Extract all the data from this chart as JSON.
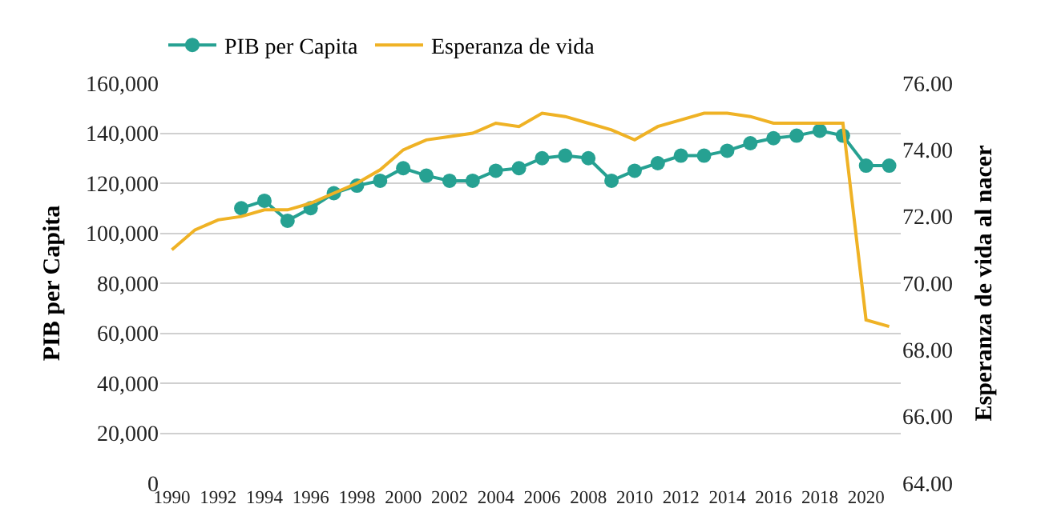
{
  "chart_data": {
    "type": "line",
    "categories": [
      "1990",
      null,
      "1992",
      null,
      "1994",
      null,
      "1996",
      null,
      "1998",
      null,
      "2000",
      null,
      "2002",
      null,
      "2004",
      null,
      "2006",
      null,
      "2008",
      null,
      "2010",
      null,
      "2012",
      null,
      "2014",
      null,
      "2016",
      null,
      "2018",
      null,
      "2020",
      null
    ],
    "series": [
      {
        "name": "PIB per Capita",
        "color": "#26a192",
        "marker": "circle",
        "values": [
          null,
          null,
          null,
          110000,
          113000,
          105000,
          110000,
          116000,
          119000,
          121000,
          126000,
          123000,
          121000,
          121000,
          125000,
          126000,
          130000,
          131000,
          130000,
          121000,
          125000,
          128000,
          131000,
          131000,
          133000,
          136000,
          138000,
          139000,
          141000,
          139000,
          127000,
          127000
        ]
      },
      {
        "name": "Esperanza de vida",
        "color": "#efb225",
        "marker": "none",
        "axis": "y2",
        "values": [
          71.0,
          71.6,
          71.9,
          72.0,
          72.2,
          72.2,
          72.4,
          72.7,
          73.0,
          73.4,
          74.0,
          74.3,
          74.4,
          74.5,
          74.8,
          74.7,
          75.1,
          75.0,
          74.8,
          74.6,
          74.3,
          74.7,
          74.9,
          75.1,
          75.1,
          75.0,
          74.8,
          74.8,
          74.8,
          74.8,
          68.9,
          68.7
        ]
      }
    ],
    "ylabel": "PIB per Capita",
    "y2label": "Esperanza de vida al nacer",
    "ylim": [
      0,
      160000
    ],
    "yticks": [
      {
        "value": 0,
        "label": "0"
      },
      {
        "value": 20000,
        "label": "20,000"
      },
      {
        "value": 40000,
        "label": "40,000"
      },
      {
        "value": 60000,
        "label": "60,000"
      },
      {
        "value": 80000,
        "label": "80,000"
      },
      {
        "value": 100000,
        "label": "100,000"
      },
      {
        "value": 120000,
        "label": "120,000"
      },
      {
        "value": 140000,
        "label": "140,000"
      },
      {
        "value": 160000,
        "label": "160,000"
      }
    ],
    "y2lim": [
      64,
      76
    ],
    "y2ticks": [
      {
        "value": 64,
        "label": "64.00"
      },
      {
        "value": 66,
        "label": "66.00"
      },
      {
        "value": 68,
        "label": "68.00"
      },
      {
        "value": 70,
        "label": "70.00"
      },
      {
        "value": 72,
        "label": "72.00"
      },
      {
        "value": 74,
        "label": "74.00"
      },
      {
        "value": 76,
        "label": "76.00"
      }
    ],
    "grid": "y",
    "legend": "top left",
    "line_style": "solid"
  }
}
